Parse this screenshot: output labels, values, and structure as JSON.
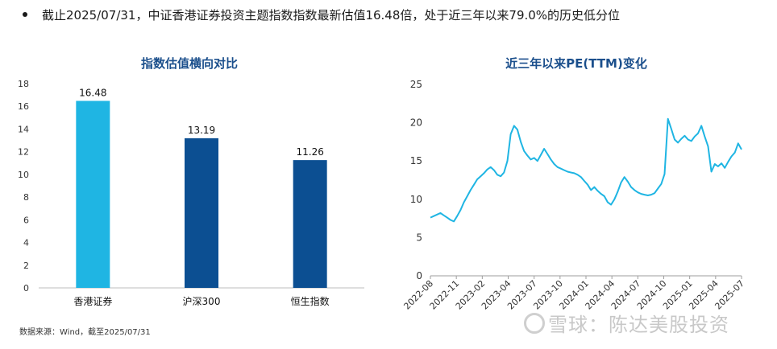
{
  "headline": "截止2025/07/31，中证香港证券投资主题指数指数最新估值16.48倍，处于近三年以来79.0%的历史低分位",
  "footnote": "数据来源：Wind，截至2025/07/31",
  "watermark": "雪球：陈达美股投资",
  "colors": {
    "title": "#1b4f8c",
    "bar_light": "#1fb5e3",
    "bar_dark": "#0c4f92",
    "line": "#1fb5e3"
  },
  "chart_data": [
    {
      "type": "bar",
      "title": "指数估值横向对比",
      "categories": [
        "香港证券",
        "沪深300",
        "恒生指数"
      ],
      "values": [
        16.48,
        13.19,
        11.26
      ],
      "value_labels": [
        "16.48",
        "13.19",
        "11.26"
      ],
      "bar_colors": [
        "#1fb5e3",
        "#0c4f92",
        "#0c4f92"
      ],
      "ylim": [
        0,
        18
      ],
      "yticks": [
        0,
        2,
        4,
        6,
        8,
        10,
        12,
        14,
        16,
        18
      ],
      "grid": false,
      "legend": "none"
    },
    {
      "type": "line",
      "title": "近三年以来PE(TTM)变化",
      "ylim": [
        0,
        25
      ],
      "yticks": [
        0,
        5,
        10,
        15,
        20,
        25
      ],
      "xticks": [
        "2022-08",
        "2022-11",
        "2023-02",
        "2023-04",
        "2023-07",
        "2023-10",
        "2024-01",
        "2024-04",
        "2024-07",
        "2024-10",
        "2025-01",
        "2025-04",
        "2025-07"
      ],
      "grid": false,
      "legend": "none",
      "series": [
        {
          "values": [
            7.6,
            7.8,
            8.0,
            8.2,
            7.9,
            7.6,
            7.3,
            7.1,
            7.8,
            8.6,
            9.6,
            10.4,
            11.2,
            11.9,
            12.6,
            13.0,
            13.4,
            13.9,
            14.2,
            13.8,
            13.2,
            13.0,
            13.5,
            15.0,
            18.5,
            19.6,
            19.1,
            17.5,
            16.3,
            15.7,
            15.2,
            15.4,
            15.0,
            15.8,
            16.6,
            15.9,
            15.2,
            14.6,
            14.2,
            14.0,
            13.8,
            13.6,
            13.5,
            13.4,
            13.2,
            12.9,
            12.4,
            11.9,
            11.2,
            11.6,
            11.1,
            10.7,
            10.4,
            9.6,
            9.3,
            10.0,
            11.0,
            12.2,
            12.9,
            12.3,
            11.6,
            11.2,
            10.9,
            10.7,
            10.6,
            10.5,
            10.6,
            10.8,
            11.4,
            12.0,
            13.3,
            20.5,
            19.2,
            17.8,
            17.4,
            17.9,
            18.3,
            17.8,
            17.6,
            18.2,
            18.6,
            19.6,
            18.2,
            16.9,
            13.6,
            14.6,
            14.3,
            14.7,
            14.1,
            14.9,
            15.6,
            16.1,
            17.3,
            16.5
          ]
        }
      ]
    }
  ]
}
